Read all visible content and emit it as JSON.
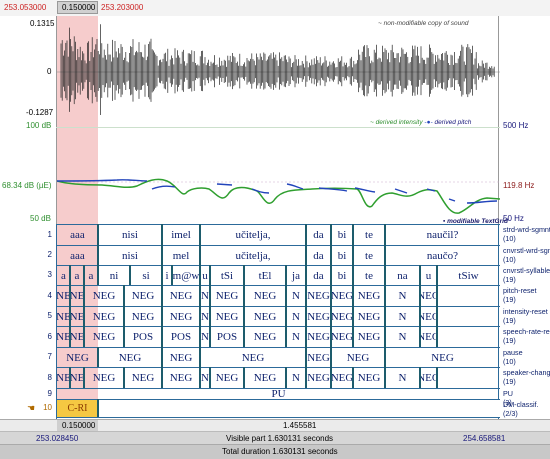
{
  "top": {
    "left_time": "253.053000",
    "sel_duration": "0.150000",
    "right_time": "253.203000"
  },
  "sound": {
    "max": "0.1315",
    "zero": "0",
    "min": "-0.1287",
    "note": "~ non-modifiable copy of sound"
  },
  "analysis": {
    "intensity_max": "100 dB",
    "intensity_min": "50 dB",
    "intensity_cursor": "68.34 dB (µE)",
    "pitch_max": "500 Hz",
    "pitch_min": "50 Hz",
    "pitch_cursor": "119.8 Hz",
    "legend_intensity": "derived intensity",
    "legend_pitch": "derived pitch",
    "textgrid_note": "modifiable TextGrid",
    "intensity_color": "#2f9f2f",
    "pitch_color": "#2244bb"
  },
  "tiers": [
    {
      "num": "1",
      "name": "strd-wrd-sgmnt",
      "count": "(10)"
    },
    {
      "num": "2",
      "name": "cnvrstl-wrd-sgm",
      "count": "(10)"
    },
    {
      "num": "3",
      "name": "cnvrstl-syllable",
      "count": "(19)"
    },
    {
      "num": "4",
      "name": "pitch-reset",
      "count": "(19)"
    },
    {
      "num": "5",
      "name": "intensity-reset",
      "count": "(19)"
    },
    {
      "num": "6",
      "name": "speech-rate-re",
      "count": "(19)"
    },
    {
      "num": "7",
      "name": "pause",
      "count": "(10)"
    },
    {
      "num": "8",
      "name": "speaker-chang",
      "count": "(19)"
    },
    {
      "num": "9",
      "name": "PU",
      "count": "(3)"
    },
    {
      "num": "10",
      "name": "DM-classif.",
      "count": "(2/3)"
    }
  ],
  "tier_labels": {
    "t1": [
      "aaa",
      "nisi",
      "imel",
      "učitelja,",
      "da",
      "bi",
      "te",
      "naučil?"
    ],
    "t2": [
      "aaa",
      "nisi",
      "mel",
      "učitelja,",
      "da",
      "bi",
      "te",
      "naučo?"
    ],
    "t3": [
      "a",
      "a",
      "a",
      "ni",
      "si",
      "i",
      "m@w",
      "u",
      "tSi",
      "tEl",
      "ja",
      "da",
      "bi",
      "te",
      "na",
      "u",
      "tSiw"
    ],
    "t4": [
      "NE",
      "NE",
      "NEG",
      "NEG",
      "NEG",
      "N",
      "NEG",
      "NEG",
      "N",
      "NEG",
      "NEG",
      "NEG",
      "N",
      "NEG"
    ],
    "t5": [
      "NE",
      "NE",
      "NEG",
      "NEG",
      "NEG",
      "N",
      "NEG",
      "NEG",
      "N",
      "NEG",
      "NEG",
      "NEG",
      "N",
      "NEG"
    ],
    "t6": [
      "NE",
      "NE",
      "NEG",
      "POS",
      "POS",
      "N",
      "POS",
      "NEG",
      "N",
      "NEG",
      "NEG",
      "NEG",
      "N",
      "NEG"
    ],
    "t7": [
      "NEG",
      "NEG",
      "NEG",
      "NEG",
      "NEG",
      "NEG",
      "NEG"
    ],
    "t8": [
      "NE",
      "NE",
      "NEG",
      "NEG",
      "NEG",
      "N",
      "NEG",
      "NEG",
      "N",
      "NEG",
      "NEG",
      "NEG",
      "N",
      "NEG"
    ],
    "t9": [
      "PU"
    ],
    "t10": [
      "C-RI"
    ]
  },
  "bottom": {
    "sel_duration": "0.150000",
    "rest_duration": "1.455581",
    "visible_start": "253.028450",
    "visible_label": "Visible part 1.630131 seconds",
    "visible_end": "254.658581",
    "total_label": "Total duration 1.630131 seconds"
  },
  "icons": {
    "pointer": "hand-pointer-icon"
  }
}
